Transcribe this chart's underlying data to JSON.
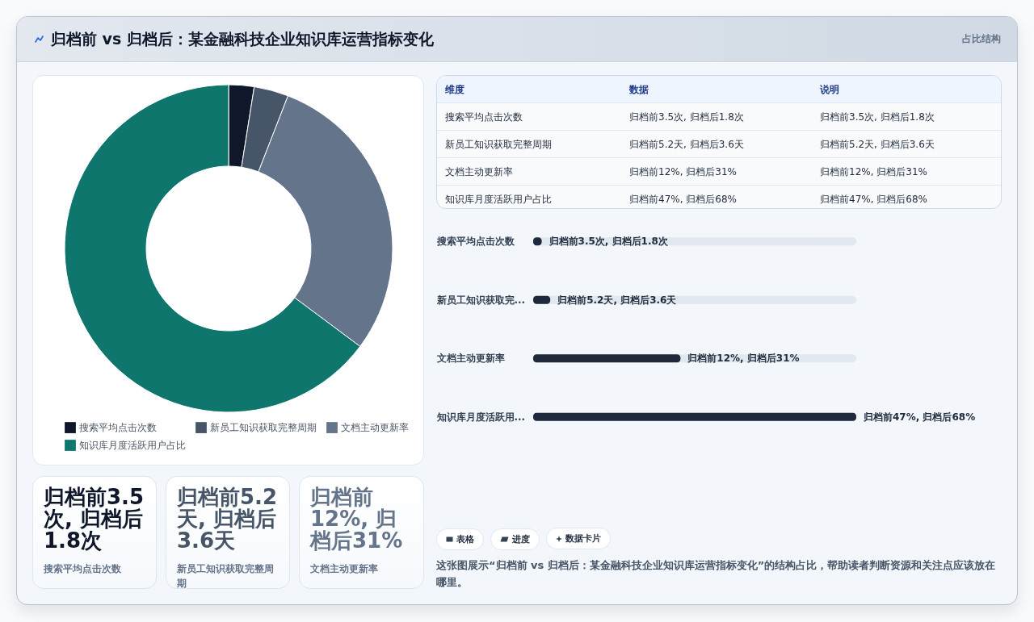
{
  "chart_data": [
    {
      "type": "other",
      "title": "归档前 vs 归档后：某金融科技企业知识库运营指标变化",
      "subtitle": "占比结构"
    },
    {
      "type": "donut",
      "categories": [
        "搜索平均点击次数",
        "新员工知识获取完整周期",
        "文档主动更新率",
        "知识库月度活跃用户占比"
      ],
      "values": [
        2.5,
        3.4,
        29.3,
        64.8
      ],
      "colors": [
        "#0f172a",
        "#475569",
        "#64748b",
        "#0f766e"
      ],
      "legend": "bottom"
    },
    {
      "type": "other",
      "annotations": [
        "维度",
        "数据",
        "说明",
        "搜索平均点击次数",
        "归档前3.5次, 归档后1.8次",
        "归档前3.5次, 归档后1.8次",
        "新员工知识获取完整周期",
        "归档前5.2天, 归档后3.6天",
        "归档前5.2天, 归档后3.6天",
        "文档主动更新率",
        "归档前12%, 归档后31%",
        "归档前12%, 归档后31%",
        "知识库月度活跃用户占比",
        "归档前47%, 归档后68%",
        "归档前47%, 归档后68%"
      ]
    },
    {
      "type": "bar",
      "orientation": "horizontal",
      "categories": [
        "搜索平均点击次数",
        "新员工知识获取完...",
        "文档主动更新率",
        "知识库月度活跃用..."
      ],
      "values": [
        1.8,
        3.6,
        31,
        68
      ],
      "color": "#1e293b",
      "value_labels": [
        "归档前3.5次, 归档后1.8次",
        "归档前5.2天, 归档后3.6天",
        "归档前12%, 归档后31%",
        "归档前47%, 归档后68%"
      ]
    },
    {
      "type": "other",
      "title": "归档前3.5次, 归档后1.8次",
      "annotations": [
        "搜索平均点击次数"
      ]
    },
    {
      "type": "other",
      "title": "归档前5.2天, 归档后3.6天",
      "annotations": [
        "新员工知识获取完整周期"
      ]
    },
    {
      "type": "other",
      "title": "归档前12%, 归档后31%",
      "annotations": [
        "文档主动更新率"
      ]
    },
    {
      "type": "other",
      "annotations": [
        "表格",
        "进度",
        "数据卡片"
      ]
    },
    {
      "type": "other",
      "annotations": [
        "这张图展示“归档前 vs 归档后：某金融科技企业知识库运营指标变化”的结构占比，帮助读者判断资源和关注点应该放在哪里。"
      ]
    }
  ]
}
